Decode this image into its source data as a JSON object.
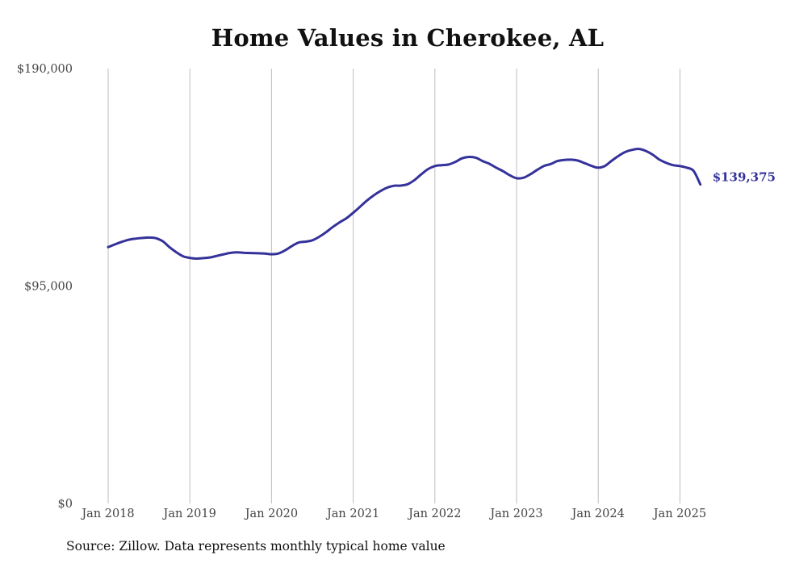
{
  "chart_data": {
    "type": "line",
    "title": "Home Values in Cherokee, AL",
    "xlabel": "",
    "ylabel": "",
    "ylim": [
      0,
      190000
    ],
    "y_ticks": [
      {
        "value": 190000,
        "label": "$190,000"
      },
      {
        "value": 95000,
        "label": "$95,000"
      },
      {
        "value": 0,
        "label": "$0"
      }
    ],
    "x_ticks": [
      {
        "value": "2018-01",
        "label": "Jan 2018"
      },
      {
        "value": "2019-01",
        "label": "Jan 2019"
      },
      {
        "value": "2020-01",
        "label": "Jan 2020"
      },
      {
        "value": "2021-01",
        "label": "Jan 2021"
      },
      {
        "value": "2022-01",
        "label": "Jan 2022"
      },
      {
        "value": "2023-01",
        "label": "Jan 2023"
      },
      {
        "value": "2024-01",
        "label": "Jan 2024"
      },
      {
        "value": "2025-01",
        "label": "Jan 2025"
      }
    ],
    "grid": "vertical",
    "line_color": "#34329a",
    "end_label": "$139,375",
    "series": [
      {
        "name": "",
        "x": [
          "2018-01",
          "2018-02",
          "2018-03",
          "2018-04",
          "2018-05",
          "2018-06",
          "2018-07",
          "2018-08",
          "2018-09",
          "2018-10",
          "2018-11",
          "2018-12",
          "2019-01",
          "2019-02",
          "2019-03",
          "2019-04",
          "2019-05",
          "2019-06",
          "2019-07",
          "2019-08",
          "2019-09",
          "2019-10",
          "2019-11",
          "2019-12",
          "2020-01",
          "2020-02",
          "2020-03",
          "2020-04",
          "2020-05",
          "2020-06",
          "2020-07",
          "2020-08",
          "2020-09",
          "2020-10",
          "2020-11",
          "2020-12",
          "2021-01",
          "2021-02",
          "2021-03",
          "2021-04",
          "2021-05",
          "2021-06",
          "2021-07",
          "2021-08",
          "2021-09",
          "2021-10",
          "2021-11",
          "2021-12",
          "2022-01",
          "2022-02",
          "2022-03",
          "2022-04",
          "2022-05",
          "2022-06",
          "2022-07",
          "2022-08",
          "2022-09",
          "2022-10",
          "2022-11",
          "2022-12",
          "2023-01",
          "2023-02",
          "2023-03",
          "2023-04",
          "2023-05",
          "2023-06",
          "2023-07",
          "2023-08",
          "2023-09",
          "2023-10",
          "2023-11",
          "2023-12",
          "2024-01",
          "2024-02",
          "2024-03",
          "2024-04",
          "2024-05",
          "2024-06",
          "2024-07",
          "2024-08",
          "2024-09",
          "2024-10",
          "2024-11",
          "2024-12",
          "2025-01",
          "2025-02",
          "2025-03",
          "2025-04"
        ],
        "values": [
          112000,
          113200,
          114300,
          115200,
          115700,
          116000,
          116200,
          115900,
          114600,
          112000,
          109800,
          108000,
          107300,
          107000,
          107200,
          107500,
          108200,
          108900,
          109500,
          109700,
          109500,
          109400,
          109300,
          109200,
          108900,
          109200,
          110600,
          112500,
          114000,
          114400,
          115000,
          116500,
          118500,
          120800,
          122800,
          124600,
          127000,
          129600,
          132300,
          134600,
          136500,
          138000,
          138800,
          138900,
          139500,
          141300,
          143800,
          146100,
          147400,
          147800,
          148100,
          149200,
          150800,
          151400,
          151100,
          149600,
          148400,
          146700,
          145200,
          143400,
          142100,
          142300,
          143800,
          145700,
          147400,
          148300,
          149600,
          150100,
          150200,
          149800,
          148700,
          147500,
          146700,
          147500,
          149800,
          151900,
          153600,
          154500,
          154900,
          154000,
          152400,
          150200,
          148800,
          147800,
          147400,
          146700,
          145300,
          139375
        ]
      }
    ]
  },
  "caption": "Source: Zillow. Data represents monthly typical home value"
}
